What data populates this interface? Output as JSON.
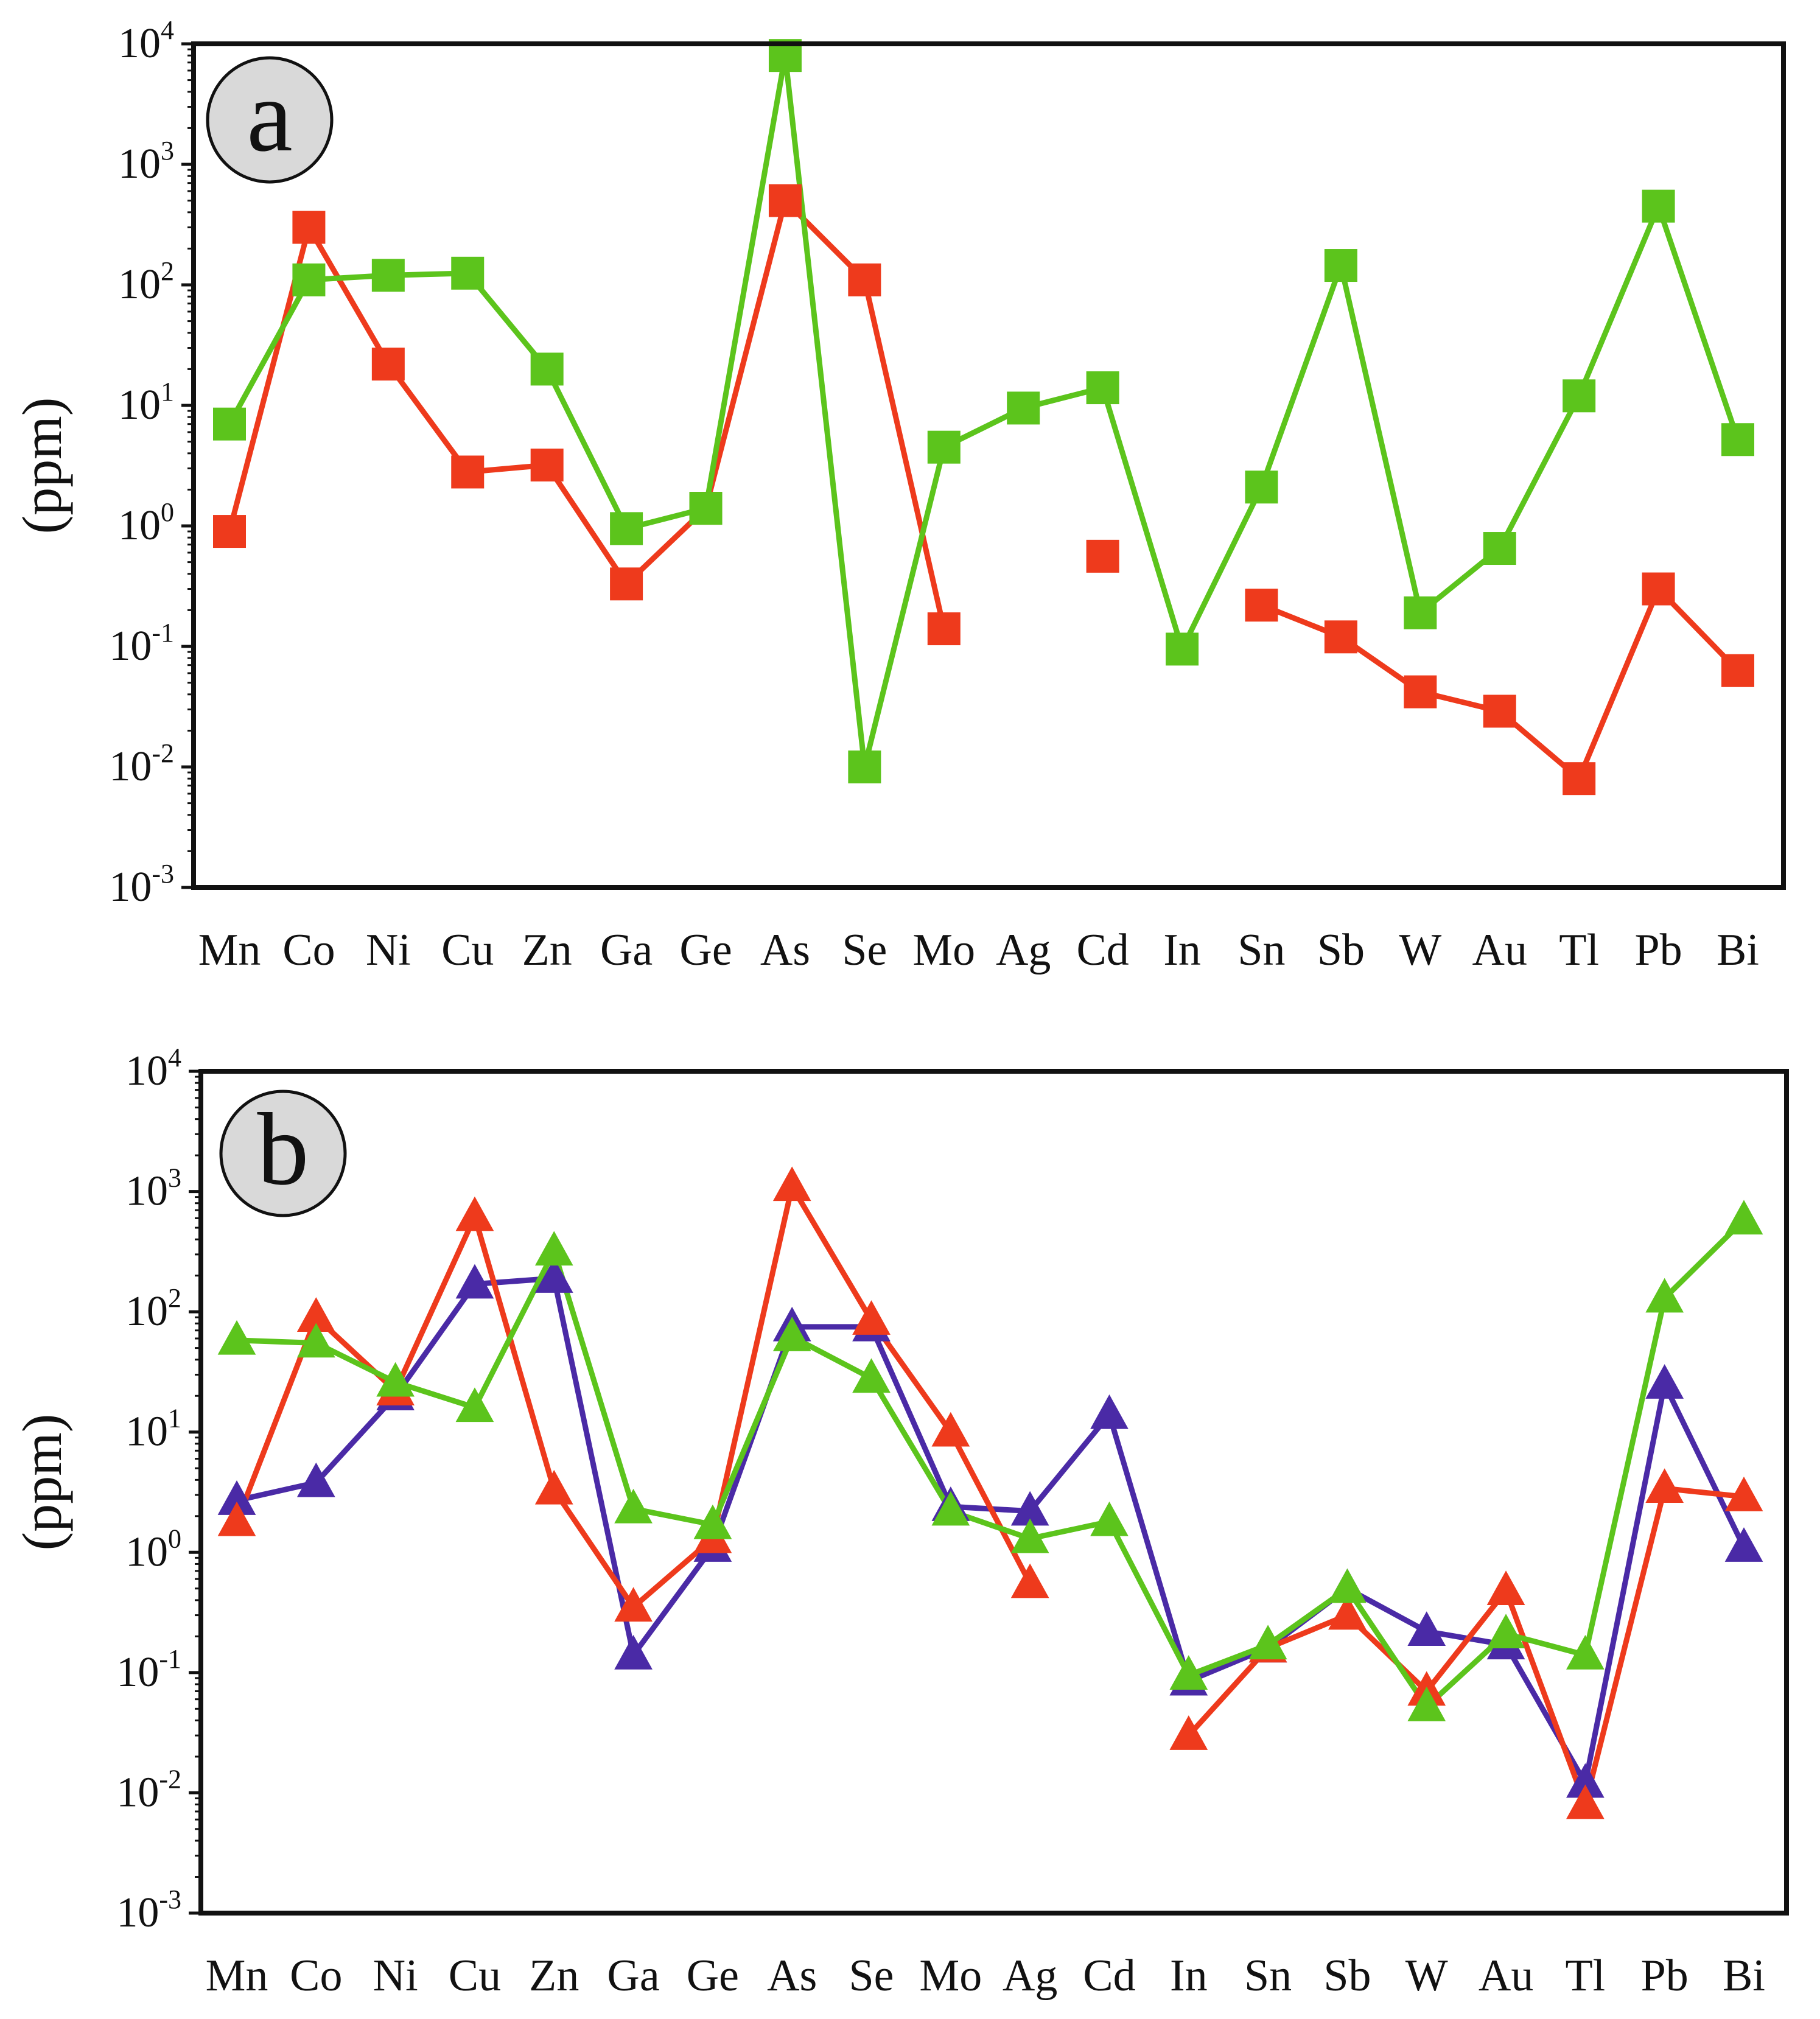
{
  "chart_data": [
    {
      "type": "line",
      "panel_label": "a",
      "ylabel": "(ppm)",
      "yscale": "log",
      "ylim": [
        0.001,
        10000
      ],
      "ytick_labels": [
        {
          "base": "10",
          "exp": "4"
        },
        {
          "base": "10",
          "exp": "3"
        },
        {
          "base": "10",
          "exp": "2"
        },
        {
          "base": "10",
          "exp": "1"
        },
        {
          "base": "10",
          "exp": "0"
        },
        {
          "base": "10",
          "exp": "-1"
        },
        {
          "base": "10",
          "exp": "-2"
        },
        {
          "base": "10",
          "exp": "-3"
        }
      ],
      "categories": [
        "Mn",
        "Co",
        "Ni",
        "Cu",
        "Zn",
        "Ga",
        "Ge",
        "As",
        "Se",
        "Mo",
        "Ag",
        "Cd",
        "In",
        "Sn",
        "Sb",
        "W",
        "Au",
        "Tl",
        "Pb",
        "Bi"
      ],
      "marker": "square",
      "series": [
        {
          "name": "red",
          "color": "#ee3a1c",
          "values": [
            0.9,
            300,
            22,
            2.8,
            3.2,
            0.33,
            1.4,
            500,
            110,
            0.14,
            null,
            0.56,
            null,
            0.22,
            0.12,
            0.042,
            0.029,
            0.008,
            0.3,
            0.063
          ]
        },
        {
          "name": "green",
          "color": "#5cc41c",
          "values": [
            7,
            110,
            120,
            125,
            20,
            0.95,
            1.4,
            8000,
            0.01,
            4.5,
            9.5,
            14,
            0.095,
            2.1,
            145,
            0.19,
            0.65,
            12,
            450,
            5.2
          ]
        }
      ]
    },
    {
      "type": "line",
      "panel_label": "b",
      "ylabel": "(ppm)",
      "yscale": "log",
      "ylim": [
        0.001,
        10000
      ],
      "ytick_labels": [
        {
          "base": "10",
          "exp": "4"
        },
        {
          "base": "10",
          "exp": "3"
        },
        {
          "base": "10",
          "exp": "2"
        },
        {
          "base": "10",
          "exp": "1"
        },
        {
          "base": "10",
          "exp": "0"
        },
        {
          "base": "10",
          "exp": "-1"
        },
        {
          "base": "10",
          "exp": "-2"
        },
        {
          "base": "10",
          "exp": "-3"
        }
      ],
      "categories": [
        "Mn",
        "Co",
        "Ni",
        "Cu",
        "Zn",
        "Ga",
        "Ge",
        "As",
        "Se",
        "Mo",
        "Ag",
        "Cd",
        "In",
        "Sn",
        "Sb",
        "W",
        "Au",
        "Tl",
        "Pb",
        "Bi"
      ],
      "marker": "triangle",
      "series": [
        {
          "name": "purple",
          "color": "#4a2aa6",
          "values": [
            2.7,
            3.8,
            20,
            170,
            190,
            0.14,
            1.1,
            75,
            75,
            2.4,
            2.2,
            14,
            0.085,
            0.16,
            0.5,
            0.22,
            0.17,
            0.012,
            25,
            1.1
          ]
        },
        {
          "name": "red",
          "color": "#ee3a1c",
          "values": [
            1.8,
            90,
            22,
            620,
            3.3,
            0.35,
            1.3,
            1100,
            85,
            10,
            0.55,
            null,
            0.03,
            0.16,
            0.3,
            0.07,
            0.48,
            0.008,
            3.4,
            2.9
          ]
        },
        {
          "name": "green",
          "color": "#5cc41c",
          "values": [
            58,
            55,
            26,
            16,
            320,
            2.3,
            1.7,
            62,
            28,
            2.2,
            1.3,
            1.8,
            0.095,
            0.17,
            0.5,
            0.052,
            0.21,
            0.14,
            130,
            580
          ]
        }
      ]
    }
  ]
}
